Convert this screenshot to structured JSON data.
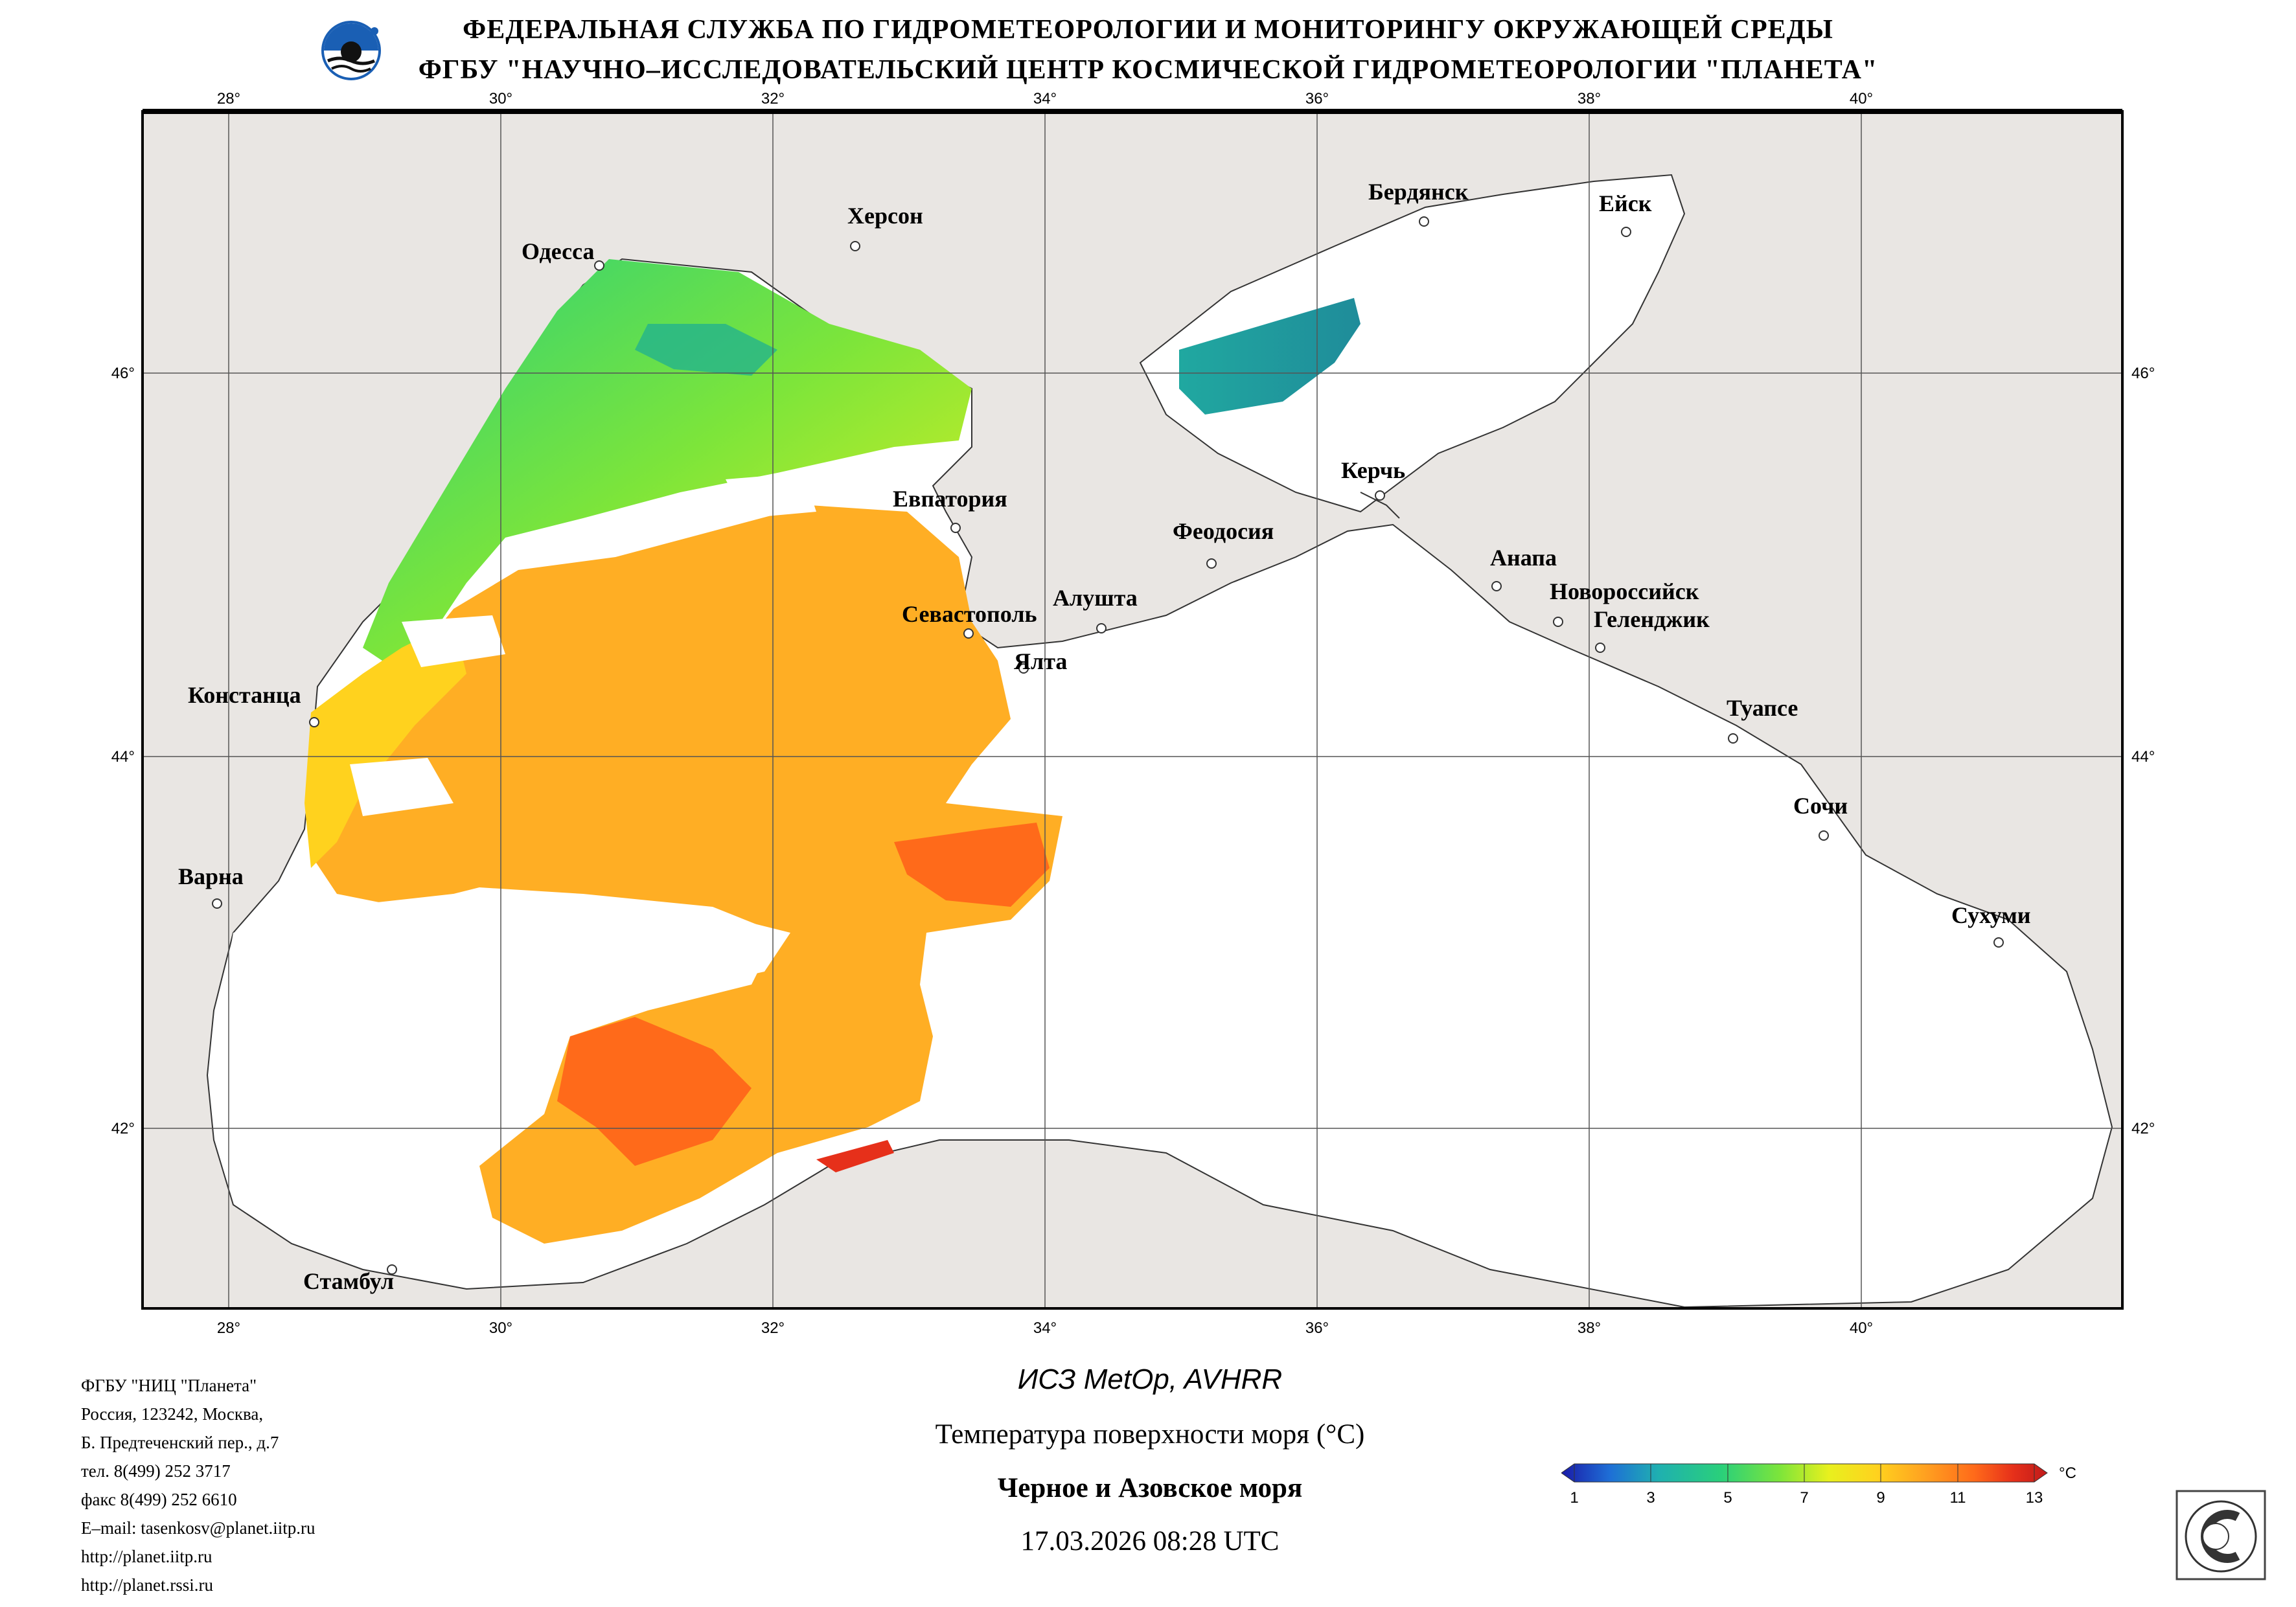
{
  "header": {
    "line1": "ФЕДЕРАЛЬНАЯ СЛУЖБА ПО ГИДРОМЕТЕОРОЛОГИИ И МОНИТОРИНГУ ОКРУЖАЮЩЕЙ СРЕДЫ",
    "line2": "ФГБУ \"НАУЧНО–ИССЛЕДОВАТЕЛЬСКИЙ ЦЕНТР КОСМИЧЕСКОЙ ГИДРОМЕТЕОРОЛОГИИ \"ПЛАНЕТА\""
  },
  "map": {
    "lon_ticks": [
      "28°",
      "30°",
      "32°",
      "34°",
      "36°",
      "38°",
      "40°"
    ],
    "lat_ticks": [
      "46°",
      "44°",
      "42°"
    ],
    "cities": [
      {
        "name": "Одесса"
      },
      {
        "name": "Херсон"
      },
      {
        "name": "Бердянск"
      },
      {
        "name": "Ейск"
      },
      {
        "name": "Евпатория"
      },
      {
        "name": "Керчь"
      },
      {
        "name": "Феодосия"
      },
      {
        "name": "Анапа"
      },
      {
        "name": "Новороссийск"
      },
      {
        "name": "Геленджик"
      },
      {
        "name": "Севастополь"
      },
      {
        "name": "Алушта"
      },
      {
        "name": "Ялта"
      },
      {
        "name": "Констанца"
      },
      {
        "name": "Туапсе"
      },
      {
        "name": "Сочи"
      },
      {
        "name": "Варна"
      },
      {
        "name": "Сухуми"
      },
      {
        "name": "Стамбул"
      }
    ],
    "colors": {
      "land": "#e9e6e3",
      "sea_no_data": "#ffffff",
      "grid": "#555555"
    }
  },
  "footer_left": [
    "ФГБУ \"НИЦ \"Планета\"",
    "Россия, 123242, Москва,",
    "Б. Предтеченский пер., д.7",
    "тел. 8(499) 252 3717",
    "факс 8(499) 252 6610",
    "E–mail: tasenkosv@planet.iitp.ru",
    "http://planet.iitp.ru",
    "http://planet.rssi.ru"
  ],
  "satellite": "ИСЗ MetOp, AVHRR",
  "product": "Температура поверхности моря (°C)",
  "region": "Черное и Азовское моря",
  "datetime": "17.03.2026 08:28 UTC",
  "colorbar": {
    "unit": "°C",
    "ticks": [
      "1",
      "3",
      "5",
      "7",
      "9",
      "11",
      "13"
    ],
    "colors": [
      "#1a1aa8",
      "#1e6fd6",
      "#1fb0b0",
      "#2ad07a",
      "#7de53a",
      "#e8f01e",
      "#ffd21e",
      "#ffa020",
      "#ff6a1a",
      "#e6301a",
      "#c01a1a"
    ]
  }
}
